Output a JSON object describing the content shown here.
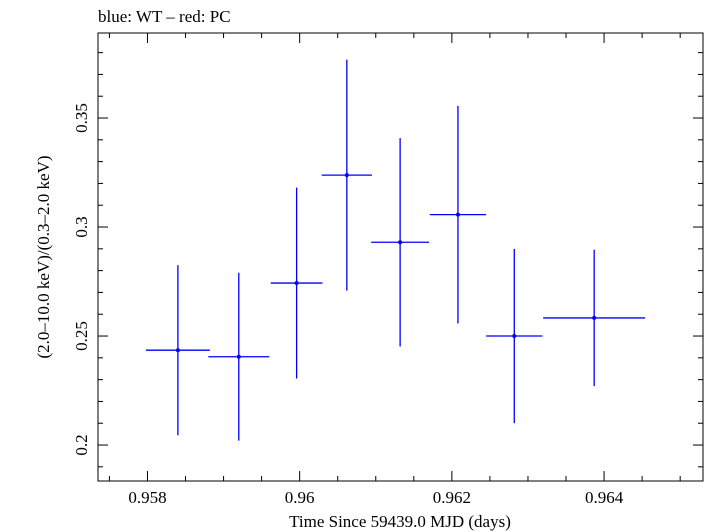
{
  "chart_data": {
    "type": "scatter",
    "title": "blue: WT – red: PC",
    "xlabel": "Time Since 59439.0 MJD (days)",
    "ylabel": "(2.0–10.0 keV)/(0.3–2.0 keV)",
    "xlim": [
      0.95735,
      0.9653
    ],
    "ylim": [
      0.1835,
      0.389
    ],
    "x_ticks": [
      0.958,
      0.96,
      0.962,
      0.964
    ],
    "x_tick_labels": [
      "0.958",
      "0.96",
      "0.962",
      "0.964"
    ],
    "y_ticks": [
      0.2,
      0.25,
      0.3,
      0.35
    ],
    "y_tick_labels": [
      "0.2",
      "0.25",
      "0.3",
      "0.35"
    ],
    "series": [
      {
        "name": "WT",
        "color": "#0000ff",
        "points": [
          {
            "x": 0.9584,
            "xerr": 0.00042,
            "y": 0.2435,
            "yerr_lo": 0.039,
            "yerr_hi": 0.039
          },
          {
            "x": 0.9592,
            "xerr": 0.0004,
            "y": 0.2405,
            "yerr_lo": 0.0385,
            "yerr_hi": 0.0385
          },
          {
            "x": 0.95996,
            "xerr": 0.00034,
            "y": 0.2743,
            "yerr_lo": 0.0438,
            "yerr_hi": 0.0438
          },
          {
            "x": 0.96062,
            "xerr": 0.00033,
            "y": 0.3238,
            "yerr_lo": 0.053,
            "yerr_hi": 0.053
          },
          {
            "x": 0.96132,
            "xerr": 0.00038,
            "y": 0.293,
            "yerr_lo": 0.0478,
            "yerr_hi": 0.0478
          },
          {
            "x": 0.96208,
            "xerr": 0.00037,
            "y": 0.3057,
            "yerr_lo": 0.0499,
            "yerr_hi": 0.0499
          },
          {
            "x": 0.96282,
            "xerr": 0.00037,
            "y": 0.25,
            "yerr_lo": 0.04,
            "yerr_hi": 0.04
          },
          {
            "x": 0.96387,
            "xerr": 0.00067,
            "y": 0.2583,
            "yerr_lo": 0.0313,
            "yerr_hi": 0.0313
          }
        ]
      }
    ]
  }
}
